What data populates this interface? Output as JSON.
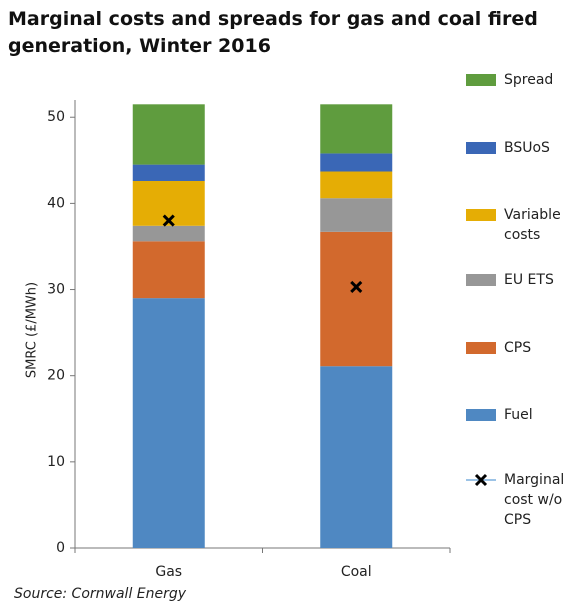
{
  "chart_data": {
    "type": "stacked_bar",
    "title": "Marginal costs and spreads for gas and coal fired generation, Winter 2016",
    "source": "Source: Cornwall Energy",
    "y_label": "SMRC (£/MWh)",
    "categories": [
      "Gas",
      "Coal"
    ],
    "series": [
      {
        "name": "Fuel",
        "color": "#4f88c2",
        "values": [
          29.0,
          21.1
        ]
      },
      {
        "name": "CPS",
        "color": "#d2692d",
        "values": [
          6.6,
          15.6
        ]
      },
      {
        "name": "EU ETS",
        "color": "#979797",
        "values": [
          1.8,
          3.9
        ]
      },
      {
        "name": "Variable costs",
        "color": "#e5ad05",
        "values": [
          5.2,
          3.1
        ]
      },
      {
        "name": "BSUoS",
        "color": "#3a67b6",
        "values": [
          1.9,
          2.1
        ]
      },
      {
        "name": "Spread",
        "color": "#5f9c3e",
        "values": [
          7.0,
          5.7
        ]
      }
    ],
    "markers": {
      "name": "Marginal cost w/o CPS",
      "color": "#000000",
      "line_color": "#9cc3e6",
      "values": [
        38.0,
        30.3
      ]
    },
    "ylim": [
      0,
      52
    ],
    "yticks": [
      0,
      10,
      20,
      30,
      40,
      50
    ],
    "grid": false
  }
}
